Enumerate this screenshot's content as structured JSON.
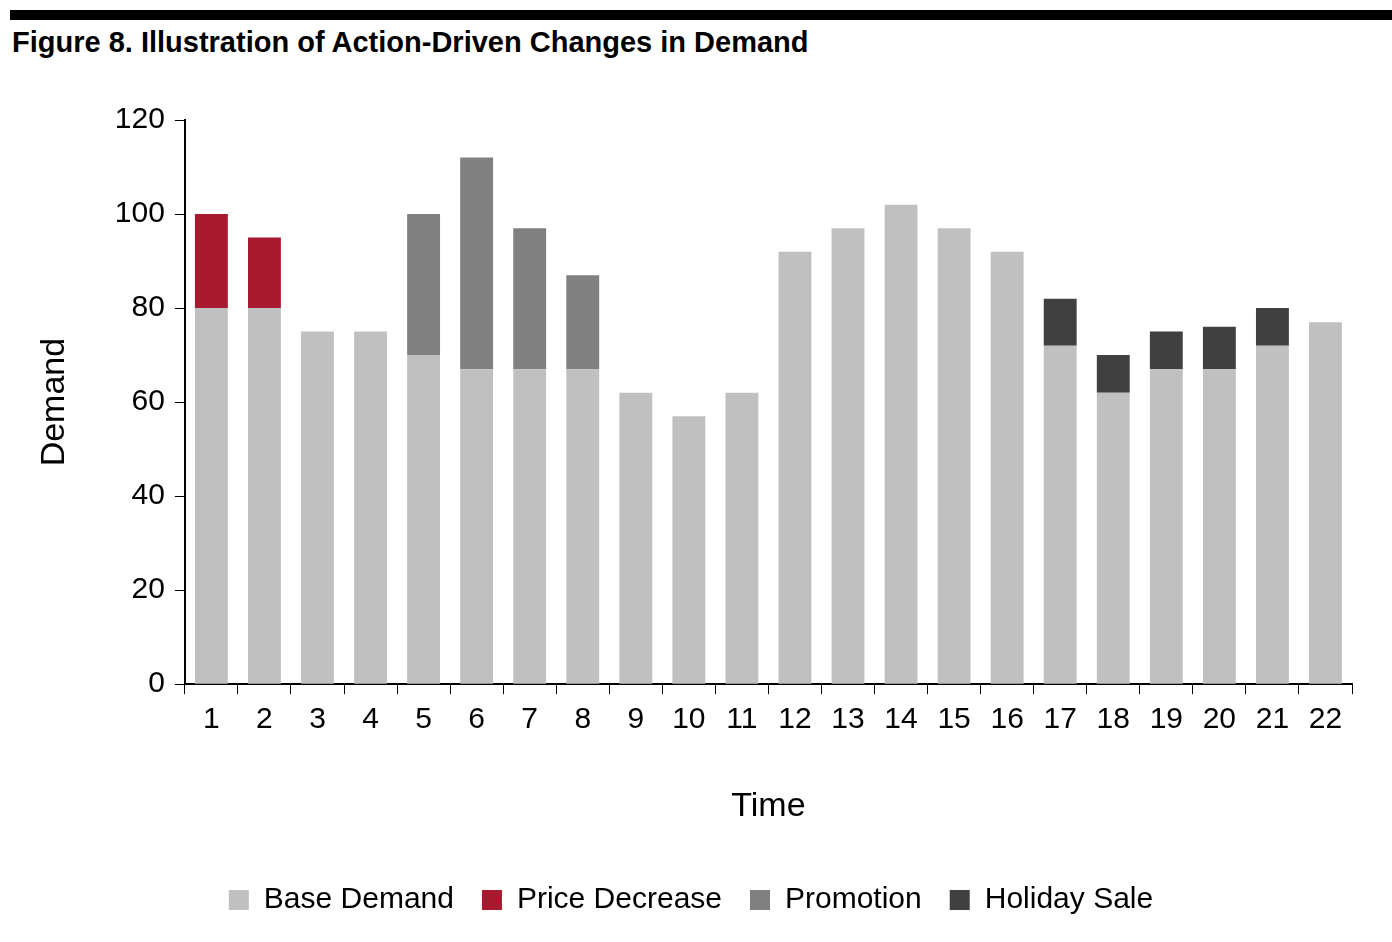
{
  "chart_data": {
    "type": "bar",
    "title": "Figure 8. Illustration of Action-Driven Changes in Demand",
    "xlabel": "Time",
    "ylabel": "Demand",
    "categories": [
      "1",
      "2",
      "3",
      "4",
      "5",
      "6",
      "7",
      "8",
      "9",
      "10",
      "11",
      "12",
      "13",
      "14",
      "15",
      "16",
      "17",
      "18",
      "19",
      "20",
      "21",
      "22"
    ],
    "series": [
      {
        "name": "Base Demand",
        "color": "#c0c0c0",
        "values": [
          80,
          80,
          75,
          75,
          70,
          67,
          67,
          67,
          62,
          57,
          62,
          92,
          97,
          102,
          97,
          92,
          72,
          62,
          67,
          67,
          72,
          77
        ]
      },
      {
        "name": "Price Decrease",
        "color": "#a6192e",
        "values": [
          20,
          15,
          null,
          null,
          null,
          null,
          null,
          null,
          null,
          null,
          null,
          null,
          null,
          null,
          null,
          null,
          null,
          null,
          null,
          null,
          null,
          null
        ]
      },
      {
        "name": "Promotion",
        "color": "#808080",
        "values": [
          null,
          null,
          null,
          null,
          30,
          45,
          30,
          20,
          null,
          null,
          null,
          null,
          null,
          null,
          null,
          null,
          null,
          null,
          null,
          null,
          null,
          null
        ]
      },
      {
        "name": "Holiday Sale",
        "color": "#404040",
        "values": [
          null,
          null,
          null,
          null,
          null,
          null,
          null,
          null,
          null,
          null,
          null,
          null,
          null,
          null,
          null,
          null,
          10,
          8,
          8,
          9,
          8,
          null
        ]
      }
    ],
    "ylim": [
      0,
      120
    ],
    "yticks": [
      0,
      20,
      40,
      60,
      80,
      100,
      120
    ],
    "grid": false,
    "legend": "bottom",
    "stacked": true
  }
}
